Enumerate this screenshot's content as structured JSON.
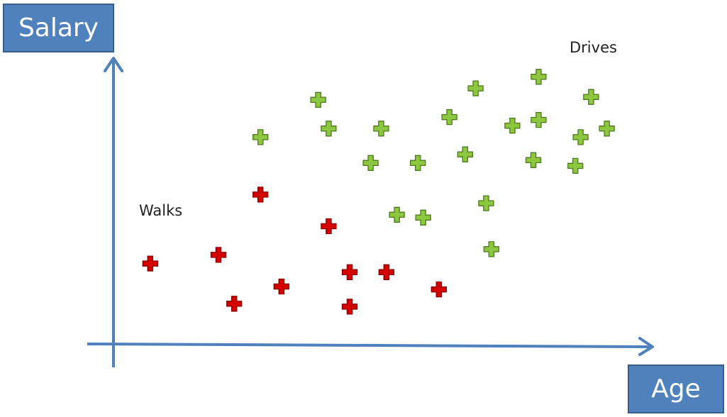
{
  "chart_data": {
    "type": "scatter",
    "title": "",
    "xlabel": "Age",
    "ylabel": "Salary",
    "xlim": [
      0,
      100
    ],
    "ylim": [
      0,
      100
    ],
    "grid": false,
    "series": [
      {
        "name": "Walks",
        "color": "#d40000",
        "marker": "plus",
        "points": [
          [
            7,
            28
          ],
          [
            20,
            31
          ],
          [
            23,
            14
          ],
          [
            28,
            52
          ],
          [
            32,
            20
          ],
          [
            41,
            41
          ],
          [
            45,
            25
          ],
          [
            45,
            13
          ],
          [
            52,
            25
          ],
          [
            62,
            19
          ]
        ]
      },
      {
        "name": "Drives",
        "color": "#8dc63f",
        "marker": "plus",
        "points": [
          [
            28,
            72
          ],
          [
            39,
            85
          ],
          [
            41,
            75
          ],
          [
            49,
            63
          ],
          [
            51,
            75
          ],
          [
            54,
            45
          ],
          [
            58,
            63
          ],
          [
            59,
            44
          ],
          [
            64,
            79
          ],
          [
            67,
            66
          ],
          [
            69,
            89
          ],
          [
            71,
            49
          ],
          [
            72,
            33
          ],
          [
            76,
            76
          ],
          [
            80,
            64
          ],
          [
            81,
            93
          ],
          [
            81,
            78
          ],
          [
            88,
            62
          ],
          [
            89,
            72
          ],
          [
            91,
            86
          ],
          [
            94,
            75
          ]
        ]
      }
    ]
  }
}
